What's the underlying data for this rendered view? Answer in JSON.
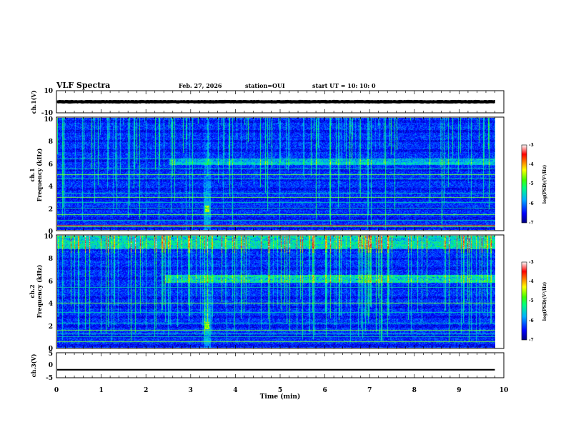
{
  "header": {
    "title": "VLF Spectra",
    "date": "Feb. 27, 2026",
    "station": "station=OUI",
    "start": "start  UT  =   10: 10: 0"
  },
  "chart_data": {
    "type": "heatmap",
    "title": "VLF Spectra",
    "xlabel": "Time  (min)",
    "xlim": [
      0,
      10
    ],
    "xticks": [
      "0",
      "1",
      "2",
      "3",
      "4",
      "5",
      "6",
      "7",
      "8",
      "9",
      "10"
    ],
    "panels": [
      {
        "name": "ch1-waveform",
        "kind": "line",
        "ylabel": "ch.1(V)",
        "ylim": [
          -10,
          10
        ],
        "yticks": [
          "10",
          "-10"
        ],
        "signal": {
          "mean": 0,
          "band": [
            -1.5,
            1.5
          ],
          "end_min": 9.8
        }
      },
      {
        "name": "ch1-spectrogram",
        "kind": "heatmap",
        "ylabel": "ch.1\nFrequency  (kHz)",
        "ylim": [
          0,
          10
        ],
        "yticks": [
          "0",
          "2",
          "4",
          "6",
          "8",
          "10"
        ],
        "features": {
          "hiss_band_khz": [
            5.8,
            6.4
          ],
          "hiss_start_min": 2.5,
          "hiss_end_min": 9.8,
          "burst_time_min": 3.35,
          "burst_freq_khz": 1.9,
          "tone_lines_khz": [
            0.3,
            0.45,
            0.9,
            1.4,
            1.95,
            2.5,
            2.9,
            3.3,
            4.6,
            5.0,
            5.5,
            6.4
          ]
        },
        "colorbar": {
          "label": "log(PSD)(V²/Hz)",
          "ticks": [
            "-3",
            "-4",
            "-5",
            "-6",
            "-7"
          ],
          "range": [
            -7,
            -3
          ]
        }
      },
      {
        "name": "ch2-spectrogram",
        "kind": "heatmap",
        "ylabel": "ch.2\nFrequency  (kHz)",
        "ylim": [
          0,
          10
        ],
        "yticks": [
          "0",
          "2",
          "4",
          "6",
          "8",
          "10"
        ],
        "features": {
          "hiss_band_khz": [
            5.8,
            6.5
          ],
          "hiss_start_min": 2.4,
          "hiss_end_min": 9.8,
          "burst_time_min": 3.35,
          "burst_freq_khz": 2.0,
          "tone_lines_khz": [
            0.6,
            1.0,
            1.3,
            1.6,
            2.2,
            3.2,
            4.0,
            5.4
          ],
          "high_band_min": 9.0
        },
        "colorbar": {
          "label": "log(PSD)(V²/Hz)",
          "ticks": [
            "-3",
            "-4",
            "-5",
            "-6",
            "-7"
          ],
          "range": [
            -7,
            -3
          ]
        }
      },
      {
        "name": "ch3-waveform",
        "kind": "line",
        "ylabel": "ch.3(V)",
        "ylim": [
          -5,
          5
        ],
        "yticks": [
          "5",
          "0",
          "-5"
        ],
        "signal": {
          "mean": -1.8,
          "band": [
            -2.1,
            -1.5
          ],
          "end_min": 9.8
        }
      }
    ]
  }
}
